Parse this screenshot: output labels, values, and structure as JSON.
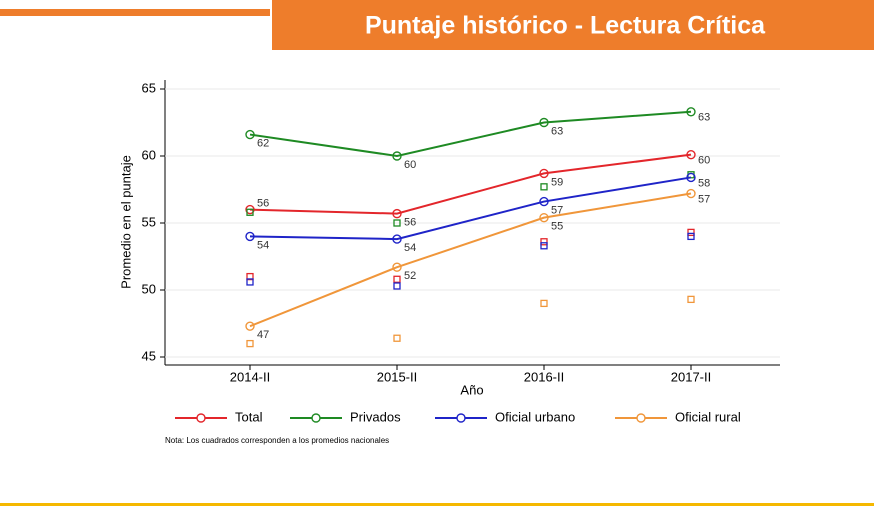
{
  "chart_data": {
    "type": "line",
    "title": "Puntaje histórico - Lectura Crítica",
    "ylabel": "Promedio en el puntaje",
    "xlabel": "Año",
    "note": "Nota: Los cuadrados corresponden a los promedios nacionales",
    "categories": [
      "2014-II",
      "2015-II",
      "2016-II",
      "2017-II"
    ],
    "ylim": [
      45,
      65
    ],
    "yticks": [
      45,
      50,
      55,
      60,
      65
    ],
    "grid": true,
    "legend": "bottom",
    "series": [
      {
        "name": "Total",
        "color": "#e3262b",
        "values": [
          56.0,
          55.7,
          58.7,
          60.1
        ],
        "value_labels": [
          "56",
          "56",
          "59",
          "60"
        ],
        "national_values": [
          51.0,
          50.8,
          53.6,
          54.3
        ]
      },
      {
        "name": "Privados",
        "color": "#1e8a23",
        "values": [
          61.6,
          60.0,
          62.5,
          63.3
        ],
        "value_labels": [
          "62",
          "60",
          "63",
          "63"
        ],
        "national_values": [
          55.8,
          55.0,
          57.7,
          58.6
        ]
      },
      {
        "name": "Oficial urbano",
        "color": "#1f24c8",
        "values": [
          54.0,
          53.8,
          56.6,
          58.4
        ],
        "value_labels": [
          "54",
          "54",
          "57",
          "58"
        ],
        "national_values": [
          50.6,
          50.3,
          53.3,
          54.0
        ]
      },
      {
        "name": "Oficial rural",
        "color": "#f0963a",
        "values": [
          47.3,
          51.7,
          55.4,
          57.2
        ],
        "value_labels": [
          "47",
          "52",
          "55",
          "57"
        ],
        "national_values": [
          46.0,
          46.4,
          49.0,
          49.3
        ]
      }
    ]
  }
}
